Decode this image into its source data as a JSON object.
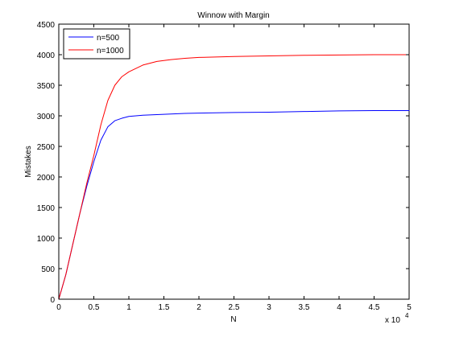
{
  "chart_data": {
    "type": "line",
    "title": "Winnow with Margin",
    "xlabel": "N",
    "ylabel": "Mistakes",
    "x_exponent_label": "x 10",
    "x_exponent_power": "4",
    "xlim": [
      0,
      5
    ],
    "ylim": [
      0,
      4500
    ],
    "x_ticks": [
      0,
      0.5,
      1,
      1.5,
      2,
      2.5,
      3,
      3.5,
      4,
      4.5,
      5
    ],
    "x_tick_labels": [
      "0",
      "0.5",
      "1",
      "1.5",
      "2",
      "2.5",
      "3",
      "3.5",
      "4",
      "4.5",
      "5"
    ],
    "y_ticks": [
      0,
      500,
      1000,
      1500,
      2000,
      2500,
      3000,
      3500,
      4000,
      4500
    ],
    "y_tick_labels": [
      "0",
      "500",
      "1000",
      "1500",
      "2000",
      "2500",
      "3000",
      "3500",
      "4000",
      "4500"
    ],
    "grid": false,
    "legend_position": "top-left",
    "series": [
      {
        "name": "n=500",
        "color": "#0000ff",
        "x": [
          0,
          0.1,
          0.2,
          0.3,
          0.4,
          0.5,
          0.6,
          0.7,
          0.8,
          0.9,
          1.0,
          1.2,
          1.4,
          1.6,
          1.8,
          2.0,
          2.5,
          3.0,
          3.5,
          4.0,
          4.5,
          5.0
        ],
        "y": [
          0,
          400,
          900,
          1400,
          1850,
          2250,
          2600,
          2820,
          2920,
          2960,
          2990,
          3010,
          3020,
          3030,
          3040,
          3045,
          3055,
          3060,
          3070,
          3080,
          3085,
          3085
        ]
      },
      {
        "name": "n=1000",
        "color": "#ff0000",
        "x": [
          0,
          0.1,
          0.2,
          0.3,
          0.4,
          0.5,
          0.6,
          0.7,
          0.8,
          0.9,
          1.0,
          1.2,
          1.4,
          1.6,
          1.8,
          2.0,
          2.5,
          3.0,
          3.5,
          4.0,
          4.5,
          5.0
        ],
        "y": [
          0,
          400,
          900,
          1400,
          1900,
          2350,
          2850,
          3250,
          3500,
          3640,
          3720,
          3830,
          3890,
          3920,
          3940,
          3955,
          3970,
          3980,
          3990,
          3995,
          4000,
          4000
        ]
      }
    ]
  }
}
